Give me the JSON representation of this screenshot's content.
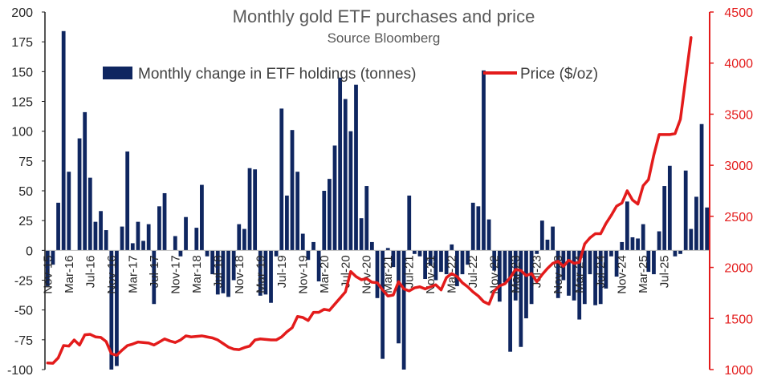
{
  "chart_data": {
    "type": "bar+line",
    "title": "Monthly gold ETF purchases and price",
    "subtitle": "Source Bloomberg",
    "legend": {
      "position": "top",
      "items": [
        "Monthly change in ETF holdings (tonnes)",
        "Price ($/oz)"
      ]
    },
    "colors": {
      "bars": "#0F2660",
      "line": "#E31B1B",
      "left_axis": "#1F1F1F",
      "right_axis": "#E31B1B"
    },
    "left_axis": {
      "min": -100,
      "max": 200,
      "ticks": [
        "200",
        "175",
        "150",
        "125",
        "100",
        "75",
        "50",
        "25",
        "0",
        "-25",
        "-50",
        "-75",
        "-100"
      ]
    },
    "right_axis": {
      "min": 1000,
      "max": 4500,
      "ticks": [
        "4500",
        "4000",
        "3500",
        "3000",
        "2500",
        "2000",
        "1500",
        "1000"
      ]
    },
    "x_tick_labels": [
      {
        "label": "Nov-15",
        "index": 0
      },
      {
        "label": "Mar-16",
        "index": 4
      },
      {
        "label": "Jul-16",
        "index": 8
      },
      {
        "label": "Nov-16",
        "index": 12
      },
      {
        "label": "Mar-17",
        "index": 16
      },
      {
        "label": "Jul-17",
        "index": 20
      },
      {
        "label": "Nov-17",
        "index": 24
      },
      {
        "label": "Mar-18",
        "index": 28
      },
      {
        "label": "Jul-18",
        "index": 32
      },
      {
        "label": "Nov-18",
        "index": 36
      },
      {
        "label": "Mar-19",
        "index": 40
      },
      {
        "label": "Jul-19",
        "index": 44
      },
      {
        "label": "Nov-19",
        "index": 48
      },
      {
        "label": "Mar-20",
        "index": 52
      },
      {
        "label": "Jul-20",
        "index": 56
      },
      {
        "label": "Nov-20",
        "index": 60
      },
      {
        "label": "Mar-21",
        "index": 64
      },
      {
        "label": "Jul-21",
        "index": 68
      },
      {
        "label": "Nov-21",
        "index": 72
      },
      {
        "label": "Mar-22",
        "index": 76
      },
      {
        "label": "Jul-22",
        "index": 80
      },
      {
        "label": "Nov-22",
        "index": 84
      },
      {
        "label": "Mar-23",
        "index": 88
      },
      {
        "label": "Jul-23",
        "index": 92
      },
      {
        "label": "Nov-23",
        "index": 96
      },
      {
        "label": "Mar-24",
        "index": 100
      },
      {
        "label": "Jul-24",
        "index": 104
      },
      {
        "label": "Nov-24",
        "index": 108
      },
      {
        "label": "Mar-25",
        "index": 112
      },
      {
        "label": "Jul-25",
        "index": 116
      }
    ],
    "series": [
      {
        "name": "Monthly change in ETF holdings (tonnes)",
        "axis": "left",
        "type": "bar",
        "values": [
          -30,
          -12,
          40,
          184,
          66,
          0,
          94,
          116,
          61,
          24,
          33,
          17,
          -100,
          -97,
          20,
          83,
          6,
          24,
          8,
          22,
          -45,
          37,
          48,
          0,
          12,
          -5,
          28,
          0,
          19,
          55,
          -5,
          -20,
          -37,
          -36,
          -39,
          -25,
          22,
          18,
          69,
          68,
          -38,
          -37,
          -44,
          -5,
          119,
          46,
          101,
          66,
          14,
          -8,
          7,
          -26,
          50,
          60,
          88,
          145,
          127,
          100,
          139,
          27,
          54,
          7,
          -40,
          -91,
          2,
          -14,
          -78,
          -100,
          46,
          -3,
          -5,
          -24,
          -13,
          -25,
          -18,
          -20,
          5,
          -30,
          -20,
          -12,
          40,
          37,
          151,
          26,
          -17,
          -43,
          -27,
          -85,
          -42,
          -81,
          -57,
          -45,
          -3,
          25,
          9,
          20,
          -40,
          -25,
          -38,
          -42,
          -58,
          -45,
          -20,
          -46,
          -45,
          -32,
          -5,
          -22,
          7,
          41,
          11,
          10,
          22,
          -18,
          -20,
          16,
          54,
          71,
          -5,
          -3,
          67,
          18,
          45,
          106,
          36
        ]
      },
      {
        "name": "Price ($/oz)",
        "axis": "right",
        "type": "line",
        "values": [
          1065,
          1062,
          1115,
          1235,
          1230,
          1290,
          1240,
          1340,
          1345,
          1320,
          1315,
          1275,
          1155,
          1140,
          1190,
          1235,
          1250,
          1270,
          1265,
          1260,
          1240,
          1270,
          1300,
          1280,
          1265,
          1290,
          1330,
          1320,
          1325,
          1330,
          1320,
          1310,
          1290,
          1255,
          1220,
          1200,
          1195,
          1215,
          1230,
          1290,
          1300,
          1295,
          1290,
          1290,
          1320,
          1370,
          1410,
          1520,
          1510,
          1480,
          1560,
          1560,
          1590,
          1580,
          1640,
          1700,
          1760,
          1960,
          1910,
          1880,
          1890,
          1855,
          1850,
          1780,
          1720,
          1730,
          1860,
          1790,
          1770,
          1800,
          1810,
          1790,
          1810,
          1830,
          1780,
          1900,
          1940,
          1910,
          1850,
          1810,
          1760,
          1720,
          1665,
          1640,
          1770,
          1820,
          1840,
          1900,
          1980,
          1970,
          1920,
          1940,
          1860,
          1930,
          1990,
          2040,
          2060,
          2010,
          2070,
          2040,
          2050,
          2230,
          2290,
          2330,
          2330,
          2430,
          2510,
          2600,
          2630,
          2750,
          2660,
          2620,
          2800,
          2860,
          3100,
          3300,
          3300,
          3300,
          3310,
          3450,
          3850,
          4250
        ]
      }
    ]
  }
}
